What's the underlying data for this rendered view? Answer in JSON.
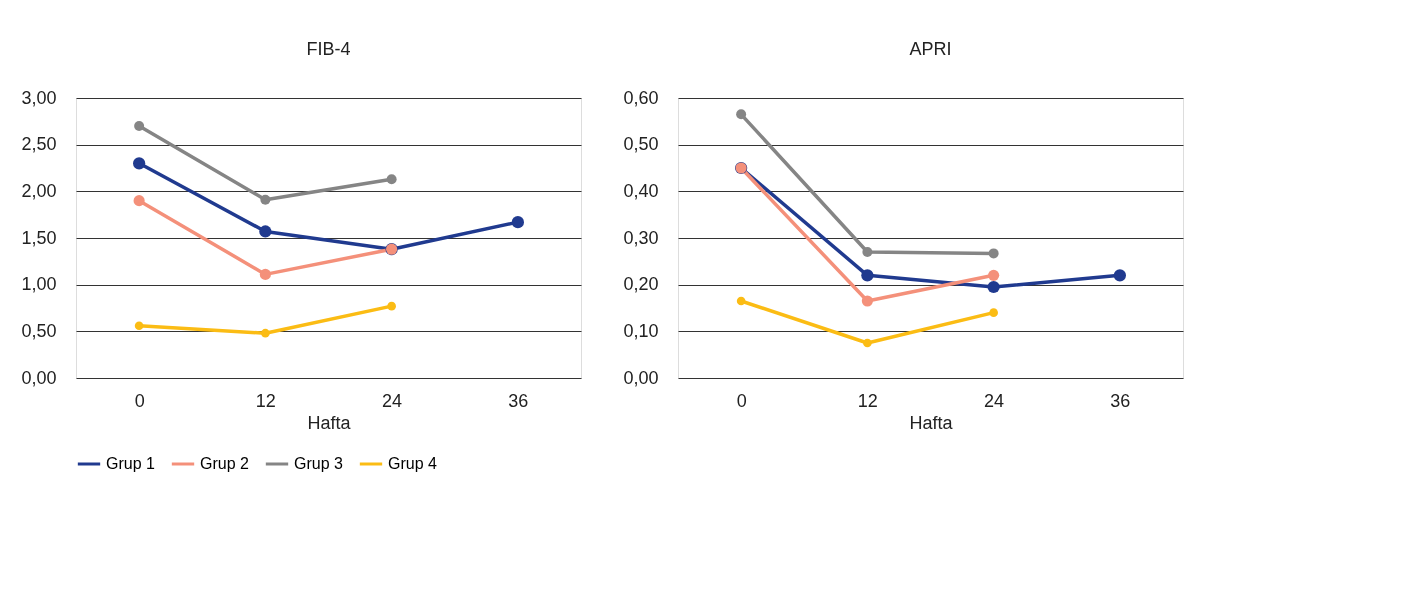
{
  "chart_data": [
    {
      "type": "line",
      "title": "FIB-4",
      "xlabel": "Hafta",
      "categories": [
        "0",
        "12",
        "24",
        "36"
      ],
      "series": [
        {
          "name": "Grup 1",
          "color": "#203a8f",
          "values": [
            2.3,
            1.57,
            1.38,
            1.67
          ]
        },
        {
          "name": "Grup 2",
          "color": "#f4907a",
          "values": [
            1.9,
            1.11,
            1.38,
            null
          ]
        },
        {
          "name": "Grup 3",
          "color": "#858585",
          "values": [
            2.7,
            1.91,
            2.13,
            null
          ]
        },
        {
          "name": "Grup 4",
          "color": "#fbbc14",
          "values": [
            0.56,
            0.48,
            0.77,
            null
          ]
        }
      ],
      "ylim": [
        0,
        3
      ],
      "yticks": [
        {
          "value": 0,
          "label": "0,00"
        },
        {
          "value": 0.5,
          "label": "0,50"
        },
        {
          "value": 1,
          "label": "1,00"
        },
        {
          "value": 1.5,
          "label": "1,50"
        },
        {
          "value": 2,
          "label": "2,00"
        },
        {
          "value": 2.5,
          "label": "2,50"
        },
        {
          "value": 3,
          "label": "3,00"
        }
      ],
      "grid": "y",
      "legend": "bottom",
      "marker": "circle",
      "line_style": "solid"
    },
    {
      "type": "line",
      "title": "APRI",
      "xlabel": "Hafta",
      "categories": [
        "0",
        "12",
        "24",
        "36"
      ],
      "series": [
        {
          "name": "Grup 1",
          "color": "#203a8f",
          "values": [
            0.45,
            0.22,
            0.195,
            0.22
          ]
        },
        {
          "name": "Grup 2",
          "color": "#f4907a",
          "values": [
            0.45,
            0.165,
            0.22,
            null
          ]
        },
        {
          "name": "Grup 3",
          "color": "#858585",
          "values": [
            0.565,
            0.27,
            0.267,
            null
          ]
        },
        {
          "name": "Grup 4",
          "color": "#fbbc14",
          "values": [
            0.165,
            0.075,
            0.14,
            null
          ]
        }
      ],
      "ylim": [
        0,
        0.6
      ],
      "yticks": [
        {
          "value": 0,
          "label": "0,00"
        },
        {
          "value": 0.1,
          "label": "0,10"
        },
        {
          "value": 0.2,
          "label": "0,20"
        },
        {
          "value": 0.3,
          "label": "0,30"
        },
        {
          "value": 0.4,
          "label": "0,40"
        },
        {
          "value": 0.5,
          "label": "0,50"
        },
        {
          "value": 0.6,
          "label": "0,60"
        }
      ],
      "grid": "y",
      "legend": "bottom",
      "marker": "circle",
      "line_style": "solid"
    }
  ]
}
